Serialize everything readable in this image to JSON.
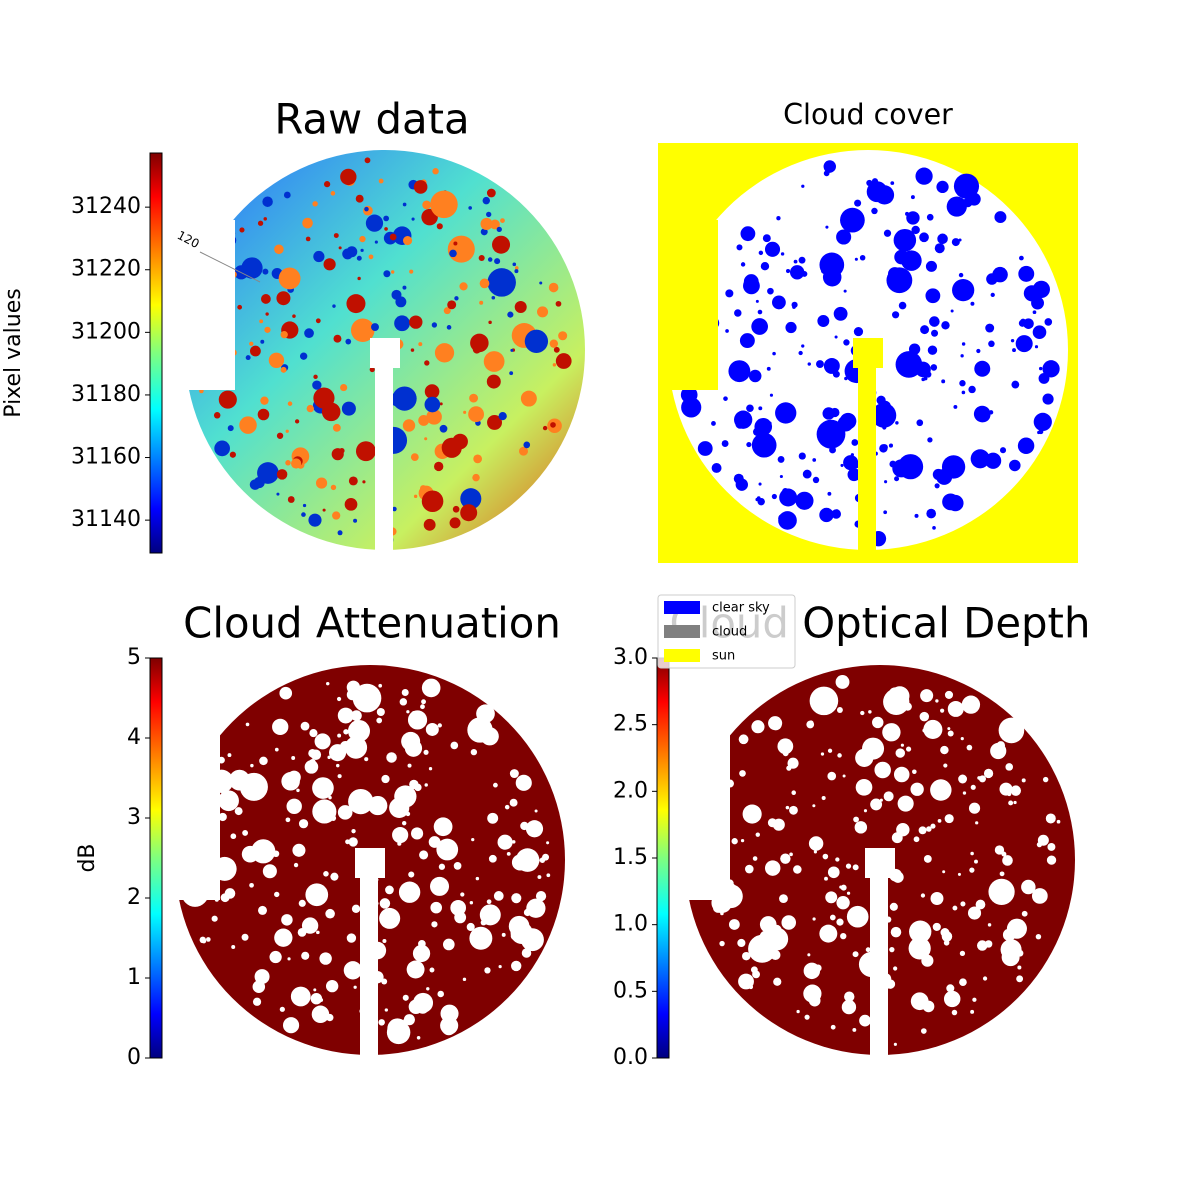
{
  "chart_data": [
    {
      "type": "image",
      "title": "Raw data",
      "colormap": "jet",
      "ylabel": "Pixel values",
      "ylim": [
        31129.5,
        31257.3
      ],
      "yticks": [
        31140,
        31160,
        31180,
        31200,
        31220,
        31240
      ],
      "annotations": [
        "120"
      ]
    },
    {
      "type": "image",
      "title": "Cloud cover",
      "series": [
        {
          "name": "clear sky",
          "color": "#0000ff"
        },
        {
          "name": "cloud",
          "color": "#808080"
        },
        {
          "name": "sun",
          "color": "#ffff00"
        }
      ]
    },
    {
      "type": "image",
      "title": "Cloud Attenuation",
      "colormap": "jet",
      "ylabel": "dB",
      "ylim": [
        0,
        5
      ],
      "yticks": [
        0,
        1,
        2,
        3,
        4,
        5
      ]
    },
    {
      "type": "image",
      "title": "Cloud Optical Depth",
      "colormap": "jet",
      "ylim": [
        0,
        3
      ],
      "yticks": [
        {
          "value": 0,
          "label": "0.0"
        },
        0.5,
        {
          "value": 1,
          "label": "1.0"
        },
        1.5,
        {
          "value": 2,
          "label": "2.0"
        },
        2.5,
        {
          "value": 3,
          "label": "3.0"
        }
      ]
    }
  ]
}
